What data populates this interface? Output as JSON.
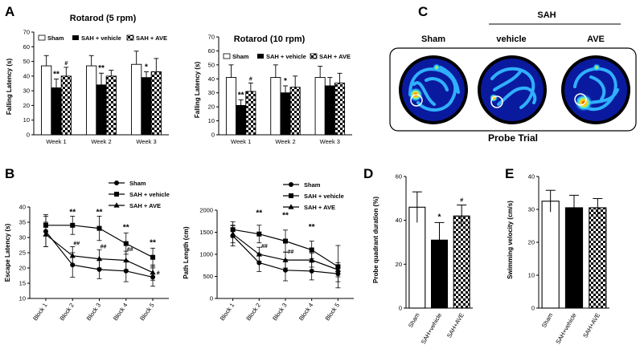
{
  "panel_labels": {
    "a": "A",
    "b": "B",
    "c": "C",
    "d": "D",
    "e": "E"
  },
  "legend_a": {
    "sham": "Sham",
    "vehicle": "SAH + vehicle",
    "ave": "SAH + AVE"
  },
  "colors": {
    "black": "#000000",
    "white": "#ffffff",
    "heat_bg": "#0a1a9e"
  },
  "heatmap": {
    "sah_header": "SAH",
    "sham": "Sham",
    "vehicle": "vehicle",
    "ave": "AVE",
    "footer": "Probe Trial"
  },
  "chart_data": [
    {
      "id": "rot5",
      "type": "bar",
      "title": "Rotarod (5 rpm)",
      "ylabel": "Falling Latency (s)",
      "ylim": [
        0,
        70
      ],
      "yticks": [
        "0",
        "10",
        "20",
        "30",
        "40",
        "50",
        "60",
        "70"
      ],
      "categories": [
        "Week 1",
        "Week 2",
        "Week 3"
      ],
      "series": [
        {
          "name": "Sham",
          "values": [
            47,
            47,
            48
          ],
          "err": [
            7,
            7,
            9
          ]
        },
        {
          "name": "SAH + vehicle",
          "values": [
            32,
            34,
            39
          ],
          "err": [
            6,
            8,
            4
          ]
        },
        {
          "name": "SAH + AVE",
          "values": [
            40,
            40,
            43
          ],
          "err": [
            6,
            4,
            9
          ]
        }
      ],
      "annotations": [
        {
          "group": 0,
          "series": 1,
          "text": "**"
        },
        {
          "group": 0,
          "series": 2,
          "text": "#"
        },
        {
          "group": 1,
          "series": 1,
          "text": "**"
        },
        {
          "group": 2,
          "series": 1,
          "text": "*"
        }
      ]
    },
    {
      "id": "rot10",
      "type": "bar",
      "title": "Rotarod (10 rpm)",
      "ylabel": "Falling Latency (s)",
      "ylim": [
        0,
        70
      ],
      "yticks": [
        "0",
        "10",
        "20",
        "30",
        "40",
        "50",
        "60",
        "70"
      ],
      "categories": [
        "Week 1",
        "Week 2",
        "Week 3"
      ],
      "series": [
        {
          "name": "Sham",
          "values": [
            41,
            41,
            41
          ],
          "err": [
            9,
            9,
            8
          ]
        },
        {
          "name": "SAH + vehicle",
          "values": [
            21,
            30,
            35
          ],
          "err": [
            4,
            5,
            6
          ]
        },
        {
          "name": "SAH + AVE",
          "values": [
            31,
            34,
            37
          ],
          "err": [
            6,
            8,
            7
          ]
        }
      ],
      "annotations": [
        {
          "group": 0,
          "series": 1,
          "text": "**"
        },
        {
          "group": 0,
          "series": 2,
          "text": "#"
        },
        {
          "group": 1,
          "series": 1,
          "text": "*"
        }
      ]
    },
    {
      "id": "escape",
      "type": "line",
      "ylabel": "Escape Latency (s)",
      "ylim": [
        10,
        40
      ],
      "yticks": [
        "10",
        "15",
        "20",
        "25",
        "30",
        "35",
        "40"
      ],
      "categories": [
        "Block 1",
        "Block 2",
        "Block 3",
        "Block 4",
        "Block 5"
      ],
      "series": [
        {
          "name": "Sham",
          "marker": "circle",
          "values": [
            32,
            21,
            19.5,
            19,
            17
          ],
          "err": [
            5,
            4,
            3,
            3.5,
            3
          ]
        },
        {
          "name": "SAH + vehicle",
          "marker": "square",
          "values": [
            34,
            34,
            33,
            28,
            23.5
          ],
          "err": [
            3.5,
            3,
            4,
            3.5,
            3
          ]
        },
        {
          "name": "SAH + AVE",
          "marker": "triangle",
          "values": [
            31,
            24,
            23,
            22.5,
            18.5
          ],
          "err": [
            4,
            3,
            3,
            3,
            2.5
          ]
        }
      ],
      "annotations": [
        {
          "x": 1,
          "y": 37.5,
          "text": "**",
          "small": false
        },
        {
          "x": 2,
          "y": 37.5,
          "text": "**",
          "small": false
        },
        {
          "x": 3,
          "y": 32.5,
          "text": "**",
          "small": false
        },
        {
          "x": 4,
          "y": 27.5,
          "text": "**",
          "small": false
        },
        {
          "x": 1.15,
          "y": 27.5,
          "text": "##",
          "small": true
        },
        {
          "x": 2.15,
          "y": 26.5,
          "text": "##",
          "small": true
        },
        {
          "x": 3.15,
          "y": 25.5,
          "text": "##",
          "small": true
        },
        {
          "x": 4.2,
          "y": 17.8,
          "text": "#",
          "small": true
        }
      ],
      "legend": [
        "Sham",
        "SAH + vehicle",
        "SAH + AVE"
      ]
    },
    {
      "id": "path",
      "type": "line",
      "ylabel": "Path  Length (cm)",
      "ylim": [
        0,
        2000
      ],
      "yticks": [
        "0",
        "500",
        "1000",
        "1500",
        "2000"
      ],
      "categories": [
        "Block 1",
        "Block 2",
        "Block 3",
        "Block 4",
        "Block 5"
      ],
      "series": [
        {
          "name": "Sham",
          "marker": "circle",
          "values": [
            1420,
            810,
            640,
            620,
            560
          ],
          "err": [
            230,
            200,
            240,
            200,
            180
          ]
        },
        {
          "name": "SAH + vehicle",
          "marker": "square",
          "values": [
            1560,
            1460,
            1300,
            1100,
            720
          ],
          "err": [
            180,
            200,
            250,
            200,
            480
          ]
        },
        {
          "name": "SAH + AVE",
          "marker": "triangle",
          "values": [
            1460,
            1000,
            870,
            870,
            650
          ],
          "err": [
            200,
            160,
            180,
            160,
            160
          ]
        }
      ],
      "annotations": [
        {
          "x": 1,
          "y": 1880,
          "text": "**",
          "small": false
        },
        {
          "x": 2,
          "y": 1830,
          "text": "**",
          "small": false
        },
        {
          "x": 3,
          "y": 1560,
          "text": "**",
          "small": false
        },
        {
          "x": 1.2,
          "y": 1150,
          "text": "##",
          "small": true
        },
        {
          "x": 2.2,
          "y": 1020,
          "text": "##",
          "small": true
        }
      ],
      "legend": [
        "Sham",
        "SAH + vehicle",
        "SAH + AVE"
      ]
    },
    {
      "id": "probe",
      "type": "bar",
      "ylabel": "Probe quadrant duration (%)",
      "ylim": [
        0,
        60
      ],
      "yticks": [
        "0",
        "20",
        "40",
        "60"
      ],
      "categories": [
        "Sham",
        "SAH+vehicle",
        "SAH+AVE"
      ],
      "values": [
        46,
        31,
        42
      ],
      "err": [
        7,
        8,
        5
      ],
      "annotations": [
        {
          "index": 1,
          "text": "*"
        },
        {
          "index": 2,
          "text": "#"
        }
      ]
    },
    {
      "id": "swim",
      "type": "bar",
      "ylabel": "Swimming velocity (cm/s)",
      "ylim": [
        0,
        40
      ],
      "yticks": [
        "0",
        "10",
        "20",
        "30",
        "40"
      ],
      "categories": [
        "Sham",
        "SAH+vehicle",
        "SAH+AVE"
      ],
      "values": [
        32.5,
        30.5,
        30.5
      ],
      "err": [
        3.3,
        3.8,
        2.8
      ],
      "annotations": []
    }
  ]
}
